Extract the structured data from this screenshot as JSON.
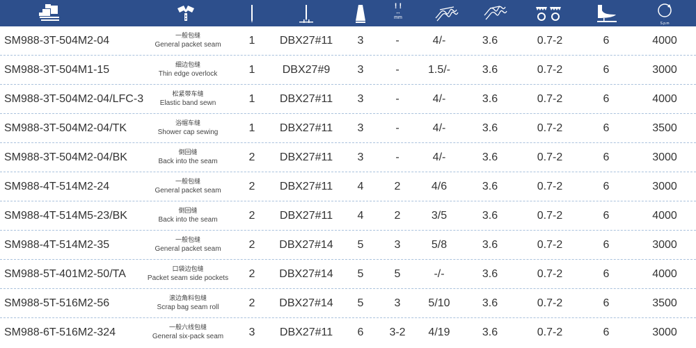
{
  "header": {
    "icons": [
      "machine-icon",
      "collar-icon",
      "needle-icon",
      "needle-gauge-icon",
      "thread-cone-icon",
      "needle-distance-icon",
      "stitch-length-icon",
      "differential-feed-icon",
      "feed-dogs-icon",
      "presser-foot-icon",
      "speed-icon"
    ],
    "mm_label": "mm",
    "spm_label": "S.p.m",
    "color": "#2d4f8c"
  },
  "rows": [
    {
      "model": "SM988-3T-504M2-04",
      "cn": "一般包缝",
      "en": "General packet seam",
      "needles": "1",
      "needle": "DBX27#11",
      "threads": "3",
      "mm": "-",
      "stitch": "4/-",
      "diff": "3.6",
      "feed": "0.7-2",
      "foot": "6",
      "spm": "4000"
    },
    {
      "model": "SM988-3T-504M1-15",
      "cn": "细边包缝",
      "en": "Thin edge overlock",
      "needles": "1",
      "needle": "DBX27#9",
      "threads": "3",
      "mm": "-",
      "stitch": "1.5/-",
      "diff": "3.6",
      "feed": "0.7-2",
      "foot": "6",
      "spm": "3000"
    },
    {
      "model": "SM988-3T-504M2-04/LFC-3",
      "cn": "松紧带车缝",
      "en": "Elastic band sewn",
      "needles": "1",
      "needle": "DBX27#11",
      "threads": "3",
      "mm": "-",
      "stitch": "4/-",
      "diff": "3.6",
      "feed": "0.7-2",
      "foot": "6",
      "spm": "4000"
    },
    {
      "model": "SM988-3T-504M2-04/TK",
      "cn": "浴帽车缝",
      "en": "Shower cap sewing",
      "needles": "1",
      "needle": "DBX27#11",
      "threads": "3",
      "mm": "-",
      "stitch": "4/-",
      "diff": "3.6",
      "feed": "0.7-2",
      "foot": "6",
      "spm": "3500"
    },
    {
      "model": "SM988-3T-504M2-04/BK",
      "cn": "倒回缝",
      "en": "Back into the seam",
      "needles": "2",
      "needle": "DBX27#11",
      "threads": "3",
      "mm": "-",
      "stitch": "4/-",
      "diff": "3.6",
      "feed": "0.7-2",
      "foot": "6",
      "spm": "3000"
    },
    {
      "model": "SM988-4T-514M2-24",
      "cn": "一般包缝",
      "en": "General packet seam",
      "needles": "2",
      "needle": "DBX27#11",
      "threads": "4",
      "mm": "2",
      "stitch": "4/6",
      "diff": "3.6",
      "feed": "0.7-2",
      "foot": "6",
      "spm": "3000"
    },
    {
      "model": "SM988-4T-514M5-23/BK",
      "cn": "倒回缝",
      "en": "Back into the seam",
      "needles": "2",
      "needle": "DBX27#11",
      "threads": "4",
      "mm": "2",
      "stitch": "3/5",
      "diff": "3.6",
      "feed": "0.7-2",
      "foot": "6",
      "spm": "4000"
    },
    {
      "model": "SM988-4T-514M2-35",
      "cn": "一般包缝",
      "en": "General packet seam",
      "needles": "2",
      "needle": "DBX27#14",
      "threads": "5",
      "mm": "3",
      "stitch": "5/8",
      "diff": "3.6",
      "feed": "0.7-2",
      "foot": "6",
      "spm": "3000"
    },
    {
      "model": "SM988-5T-401M2-50/TA",
      "cn": "口袋边包缝",
      "en": "Packet seam side pockets",
      "needles": "2",
      "needle": "DBX27#14",
      "threads": "5",
      "mm": "5",
      "stitch": "-/-",
      "diff": "3.6",
      "feed": "0.7-2",
      "foot": "6",
      "spm": "4000"
    },
    {
      "model": "SM988-5T-516M2-56",
      "cn": "滚边角料包缝",
      "en": "Scrap bag seam roll",
      "needles": "2",
      "needle": "DBX27#14",
      "threads": "5",
      "mm": "3",
      "stitch": "5/10",
      "diff": "3.6",
      "feed": "0.7-2",
      "foot": "6",
      "spm": "3500"
    },
    {
      "model": "SM988-6T-516M2-324",
      "cn": "一般六线包缝",
      "en": "General six-pack seam",
      "needles": "3",
      "needle": "DBX27#11",
      "threads": "6",
      "mm": "3-2",
      "stitch": "4/19",
      "diff": "3.6",
      "feed": "0.7-2",
      "foot": "6",
      "spm": "3000"
    }
  ]
}
